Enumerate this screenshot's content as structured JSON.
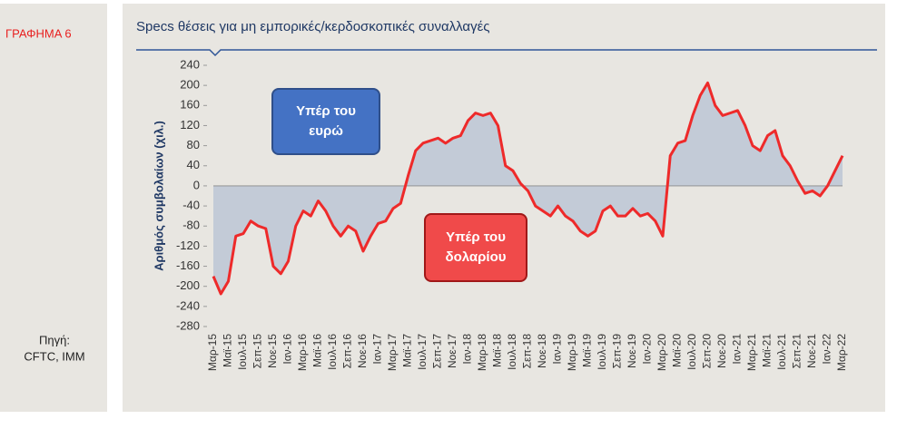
{
  "label": "ΓΡΑΦΗΜΑ 6",
  "source": [
    "Πηγή:",
    "CFTC, IMM"
  ],
  "chart_data": {
    "type": "area-line",
    "title": "Specs θέσεις για μη εμπορικές/κερδοσκοπικές συναλλαγές",
    "y_label": "Αριθμός συμβολαίων (χιλ.)",
    "annotations": [
      {
        "lines": [
          "Υπέρ του",
          "ευρώ"
        ],
        "color": "#4472c4"
      },
      {
        "lines": [
          "Υπέρ του",
          "δολαρίου"
        ],
        "color": "#f04a4a"
      }
    ],
    "color": "#ee2a2a",
    "fill": "#b9c4d4",
    "categories": [
      "Μαρ-15",
      null,
      "Μαϊ-15",
      null,
      "Ιουλ-15",
      null,
      "Σεπ-15",
      null,
      "Νοε-15",
      null,
      "Ιαν-16",
      null,
      "Μαρ-16",
      null,
      "Μαϊ-16",
      null,
      "Ιουλ-16",
      null,
      "Σεπ-16",
      null,
      "Νοε-16",
      null,
      "Ιαν-17",
      null,
      "Μαρ-17",
      null,
      "Μαϊ-17",
      null,
      "Ιουλ-17",
      null,
      "Σεπ-17",
      null,
      "Νοε-17",
      null,
      "Ιαν-18",
      null,
      "Μαρ-18",
      null,
      "Μαϊ-18",
      null,
      "Ιουλ-18",
      null,
      "Σεπ-18",
      null,
      "Νοε-18",
      null,
      "Ιαν-19",
      null,
      "Μαρ-19",
      null,
      "Μαϊ-19",
      null,
      "Ιουλ-19",
      null,
      "Σεπ-19",
      null,
      "Νοε-19",
      null,
      "Ιαν-20",
      null,
      "Μαρ-20",
      null,
      "Μαϊ-20",
      null,
      "Ιουλ-20",
      null,
      "Σεπ-20",
      null,
      "Νοε-20",
      null,
      "Ιαν-21",
      null,
      "Μαρ-21",
      null,
      "Μαϊ-21",
      null,
      "Ιουλ-21",
      null,
      "Σεπ-21",
      null,
      "Νοε-21",
      null,
      "Ιαν-22",
      null,
      "Μαρ-22"
    ],
    "values": [
      -180,
      -215,
      -190,
      -100,
      -95,
      -70,
      -80,
      -85,
      -160,
      -175,
      -150,
      -80,
      -50,
      -60,
      -30,
      -50,
      -80,
      -100,
      -80,
      -90,
      -130,
      -100,
      -75,
      -70,
      -45,
      -35,
      20,
      70,
      85,
      90,
      95,
      85,
      95,
      100,
      130,
      145,
      140,
      145,
      120,
      40,
      30,
      5,
      -10,
      -40,
      -50,
      -60,
      -40,
      -60,
      -70,
      -90,
      -100,
      -90,
      -50,
      -40,
      -60,
      -60,
      -45,
      -60,
      -55,
      -70,
      -100,
      60,
      85,
      90,
      140,
      180,
      205,
      160,
      140,
      145,
      150,
      120,
      80,
      70,
      100,
      110,
      60,
      40,
      10,
      -15,
      -10,
      -20,
      0,
      30,
      60
    ],
    "ylim": [
      -280,
      240
    ],
    "yticks": [
      -280,
      -240,
      -200,
      -160,
      -120,
      -80,
      -40,
      0,
      40,
      80,
      120,
      160,
      200,
      240
    ]
  }
}
